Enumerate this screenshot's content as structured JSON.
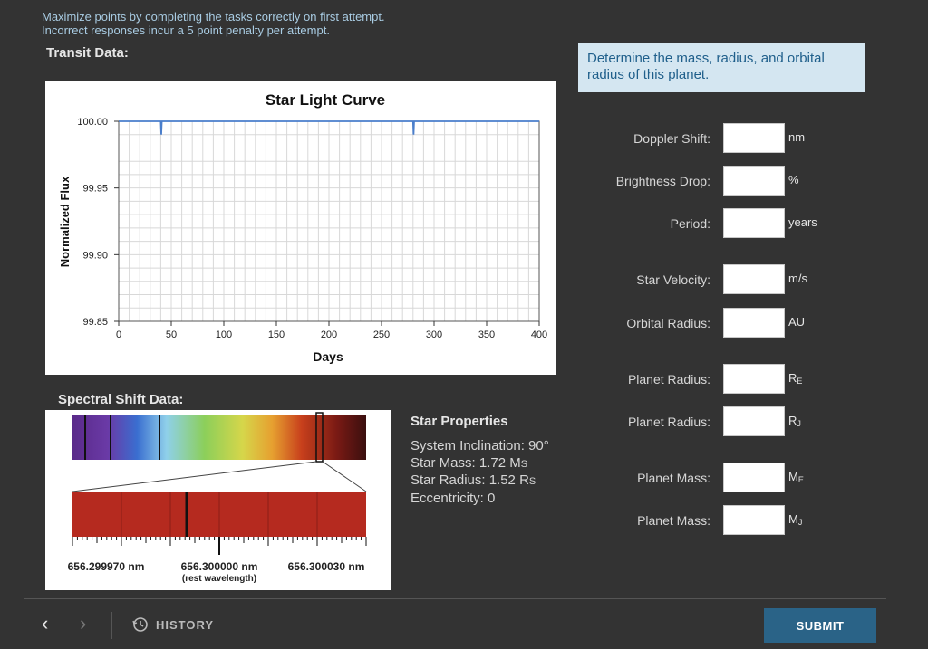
{
  "instructions": {
    "line1": "Maximize points by completing the tasks correctly on first attempt.",
    "line2": "Incorrect responses incur a 5 point penalty per attempt."
  },
  "transit": {
    "title": "Transit Data:"
  },
  "chart_data": {
    "type": "line",
    "title": "Star Light Curve",
    "xlabel": "Days",
    "ylabel": "Normalized Flux",
    "xlim": [
      0,
      400
    ],
    "ylim": [
      99.85,
      100.0
    ],
    "xticks": [
      "0",
      "50",
      "100",
      "150",
      "200",
      "250",
      "300",
      "350",
      "400"
    ],
    "yticks": [
      "100.00",
      "99.95",
      "99.90",
      "99.85"
    ],
    "grid": true,
    "series": [
      {
        "x": [
          0,
          40,
          40.5,
          41,
          280,
          280.5,
          281,
          400
        ],
        "y": [
          100.0,
          100.0,
          99.99,
          100.0,
          100.0,
          99.99,
          100.0,
          100.0
        ]
      }
    ]
  },
  "spectral": {
    "title": "Spectral Shift Data:",
    "left_label": "656.299970 nm",
    "center_label": "656.300000 nm",
    "center_sub": "(rest wavelength)",
    "right_label": "656.300030 nm"
  },
  "question": "Determine the mass, radius, and orbital radius of this planet.",
  "fields": [
    {
      "label": "Doppler Shift:",
      "unit": "nm",
      "value": ""
    },
    {
      "label": "Brightness Drop:",
      "unit": "%",
      "value": ""
    },
    {
      "label": "Period:",
      "unit": "years",
      "value": ""
    },
    {
      "label": "Star Velocity:",
      "unit": "m/s",
      "value": ""
    },
    {
      "label": "Orbital Radius:",
      "unit": "AU",
      "value": ""
    },
    {
      "label": "Planet Radius:",
      "unit": "RE",
      "value": ""
    },
    {
      "label": "Planet Radius:",
      "unit": "RJ",
      "value": ""
    },
    {
      "label": "Planet Mass:",
      "unit": "ME",
      "value": ""
    },
    {
      "label": "Planet Mass:",
      "unit": "MJ",
      "value": ""
    }
  ],
  "star": {
    "title": "Star Properties",
    "inclination": "System Inclination: 90°",
    "mass": "Star Mass: 1.72 MS",
    "radius": "Star Radius: 1.52 RS",
    "eccentricity": "Eccentricity: 0"
  },
  "footer": {
    "history": "HISTORY",
    "submit": "SUBMIT",
    "prev_icon": "chevron-left-icon",
    "next_icon": "chevron-right-icon"
  },
  "colors": {
    "accent": "#2a6387",
    "question_bg": "#d4e6f1",
    "line": "#4a7ecb",
    "absorption_bg": "#b52a1f"
  }
}
